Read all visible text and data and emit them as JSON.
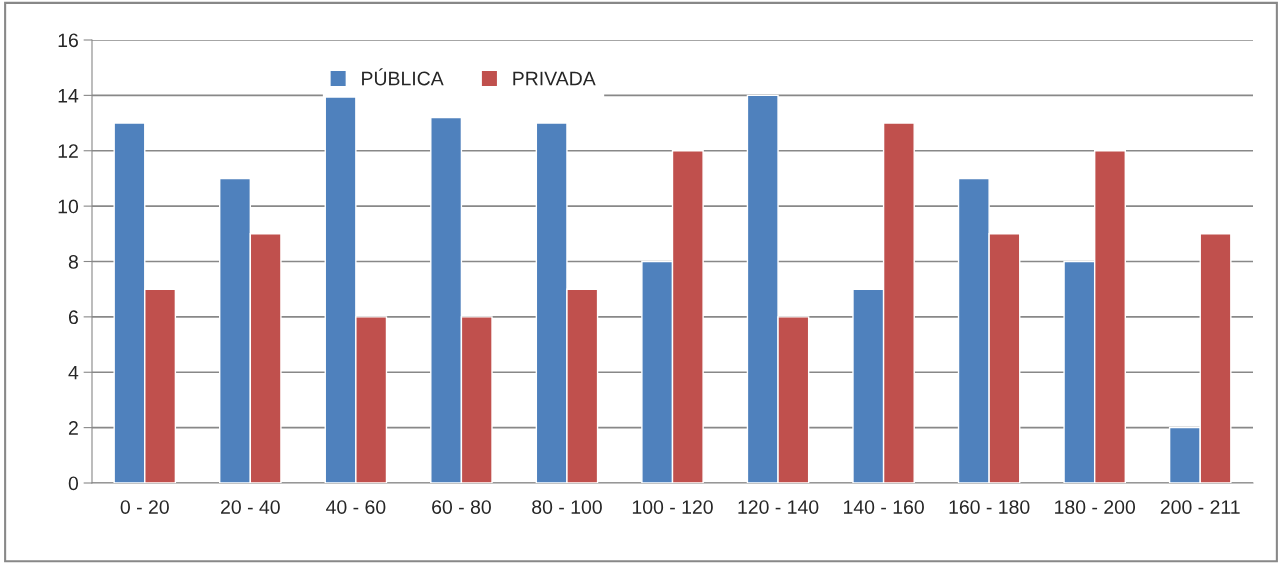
{
  "chart_data": {
    "type": "bar",
    "categories": [
      "0 - 20",
      "20 - 40",
      "40 - 60",
      "60 - 80",
      "80 - 100",
      "100 - 120",
      "120 - 140",
      "140 - 160",
      "160 - 180",
      "180 - 200",
      "200 - 211"
    ],
    "series": [
      {
        "name": "PÚBLICA",
        "color": "#4f81bd",
        "values": [
          13,
          11,
          14,
          13.2,
          13,
          8,
          14,
          7,
          11,
          8,
          2
        ]
      },
      {
        "name": "PRIVADA",
        "color": "#c0504d",
        "values": [
          7,
          9,
          6,
          6,
          7,
          12,
          6,
          13,
          9,
          12,
          9
        ]
      }
    ],
    "ylim": [
      0,
      16
    ],
    "yticks": [
      0,
      2,
      4,
      6,
      8,
      10,
      12,
      14,
      16
    ],
    "grid": "y",
    "legend": "top"
  }
}
